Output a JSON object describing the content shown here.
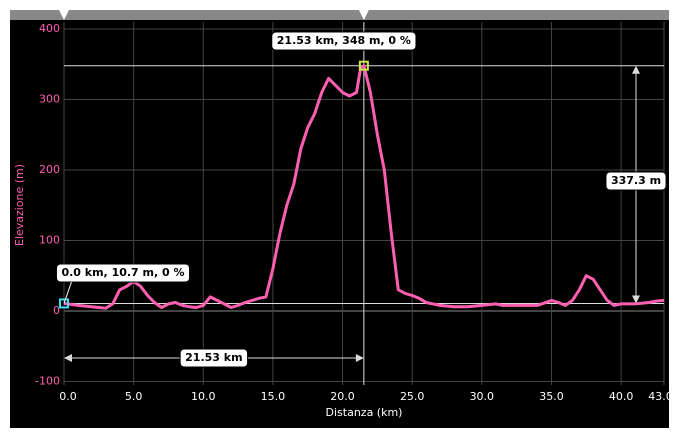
{
  "chart_data": {
    "type": "line",
    "x_label": "Distanza (km)",
    "y_label": "Elevazione (m)",
    "x": [
      0,
      1,
      2,
      3,
      3.5,
      4,
      4.5,
      5,
      5.5,
      6,
      6.5,
      7,
      7.5,
      8,
      8.5,
      9,
      9.5,
      10,
      10.5,
      11,
      11.5,
      12,
      12.5,
      13,
      14,
      14.5,
      15,
      15.5,
      16,
      16.5,
      17,
      17.5,
      18,
      18.5,
      19,
      19.5,
      20,
      20.5,
      21,
      21.3,
      21.53,
      22,
      22.5,
      23,
      23.5,
      24,
      24.5,
      25,
      25.5,
      26,
      27,
      28,
      29,
      30,
      31,
      31.5,
      32,
      33,
      34,
      35,
      35.5,
      36,
      36.5,
      37,
      37.5,
      38,
      38.5,
      39,
      39.5,
      40,
      41,
      42,
      42.5,
      43.08
    ],
    "series": [
      {
        "name": "Elevazione",
        "color": "#ff5fb0",
        "values": [
          10.7,
          8,
          6,
          4,
          10,
          30,
          35,
          42,
          35,
          22,
          12,
          5,
          10,
          12,
          8,
          6,
          5,
          8,
          20,
          15,
          10,
          5,
          8,
          12,
          18,
          20,
          60,
          110,
          150,
          180,
          230,
          260,
          280,
          310,
          330,
          320,
          310,
          305,
          310,
          345,
          348,
          310,
          250,
          200,
          110,
          30,
          25,
          22,
          18,
          12,
          8,
          6,
          6,
          8,
          10,
          8,
          8,
          8,
          8,
          15,
          12,
          8,
          15,
          30,
          50,
          45,
          30,
          15,
          8,
          10,
          10,
          12,
          14,
          15
        ]
      }
    ],
    "xlim": [
      0,
      43.08
    ],
    "ylim": [
      -105,
      410
    ],
    "xticks": [
      {
        "value": 0,
        "label": "0.0"
      },
      {
        "value": 5,
        "label": "5.0"
      },
      {
        "value": 10,
        "label": "10.0"
      },
      {
        "value": 15,
        "label": "15.0"
      },
      {
        "value": 20,
        "label": "20.0"
      },
      {
        "value": 25,
        "label": "25.0"
      },
      {
        "value": 30,
        "label": "30.0"
      },
      {
        "value": 35,
        "label": "35.0"
      },
      {
        "value": 40,
        "label": "40.0"
      },
      43.08
    ],
    "yticks": [
      -100,
      0,
      100,
      200,
      300,
      400
    ],
    "grid": true,
    "annotations": {
      "peak": "21.53 km, 348 m, 0 %",
      "start": "0.0 km, 10.7 m, 0 %",
      "climb": "337.3 m",
      "distance": "21.53 km"
    }
  }
}
